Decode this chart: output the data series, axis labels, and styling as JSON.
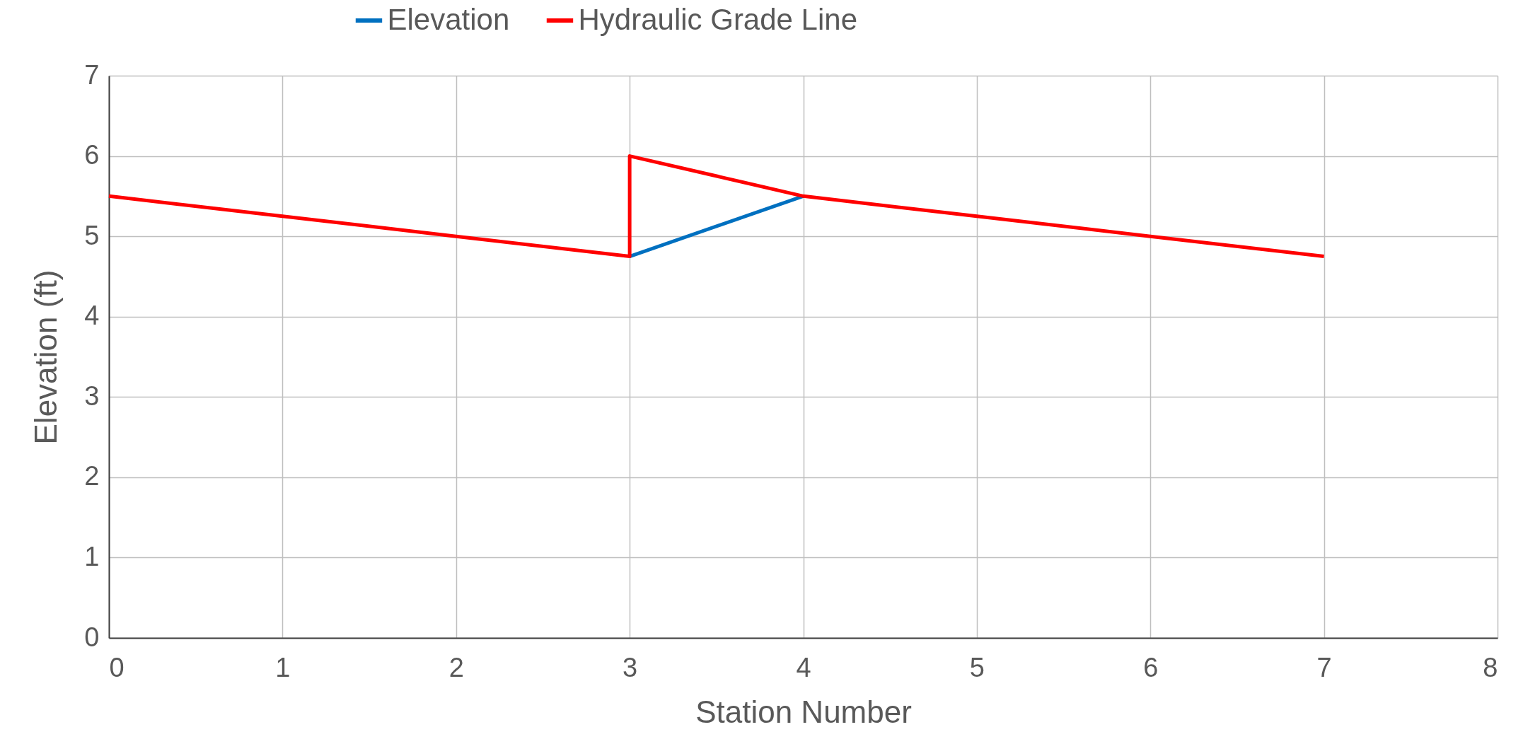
{
  "chart_data": {
    "type": "line",
    "xlabel": "Station Number",
    "ylabel": "Elevation (ft)",
    "series": [
      {
        "name": "Elevation",
        "color": "#0070c0",
        "x": [
          3,
          4
        ],
        "values": [
          4.75,
          5.5
        ]
      },
      {
        "name": "Hydraulic Grade Line",
        "color": "#ff0000",
        "x": [
          0,
          1,
          2,
          3,
          3,
          4,
          5,
          6,
          7
        ],
        "values": [
          5.5,
          5.25,
          5,
          4.75,
          6,
          5.5,
          5.25,
          5,
          4.75
        ]
      }
    ],
    "xlim": [
      0,
      8
    ],
    "xticks": [
      0,
      1,
      2,
      3,
      4,
      5,
      6,
      7,
      8
    ],
    "ylim": [
      0,
      7
    ],
    "yticks": [
      0,
      1,
      2,
      3,
      4,
      5,
      6,
      7
    ],
    "grid": true,
    "legend": "top",
    "marker": "none",
    "line_style": "solid"
  }
}
